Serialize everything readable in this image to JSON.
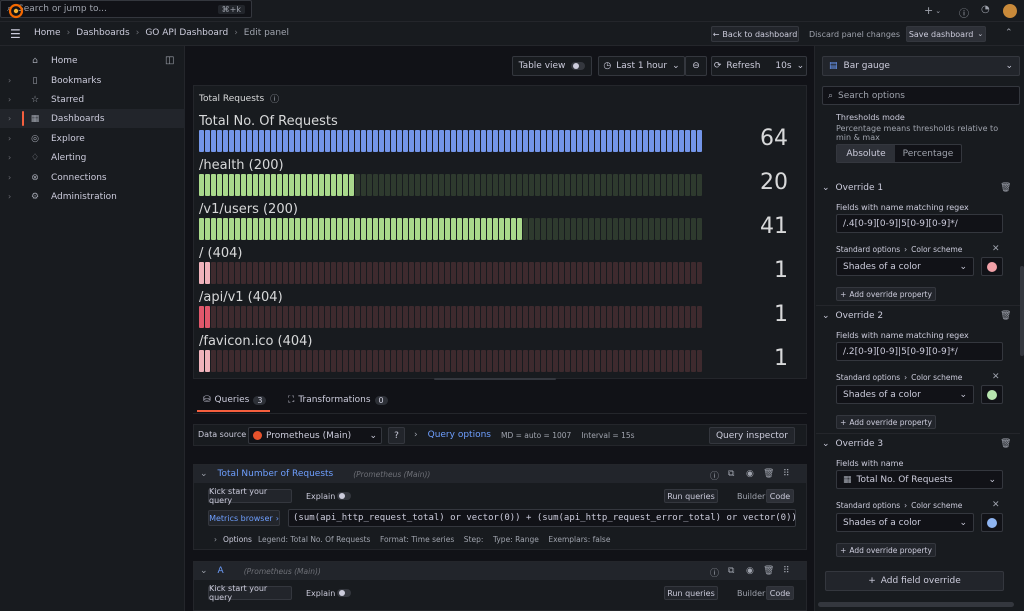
{
  "topbar": {
    "search_placeholder": "Search or jump to...",
    "search_shortcut": "⌘+k",
    "plus_label": "+"
  },
  "breadcrumb": {
    "items": [
      "Home",
      "Dashboards",
      "GO API Dashboard",
      "Edit panel"
    ]
  },
  "actions": {
    "back": "Back to dashboard",
    "discard": "Discard panel changes",
    "save": "Save dashboard"
  },
  "sidebar": {
    "items": [
      {
        "label": "Home"
      },
      {
        "label": "Bookmarks"
      },
      {
        "label": "Starred"
      },
      {
        "label": "Dashboards"
      },
      {
        "label": "Explore"
      },
      {
        "label": "Alerting"
      },
      {
        "label": "Connections"
      },
      {
        "label": "Administration"
      }
    ]
  },
  "toolbar": {
    "table_view": "Table view",
    "time_range": "Last 1 hour",
    "refresh": "Refresh",
    "refresh_interval": "10s"
  },
  "panel": {
    "title": "Total Requests",
    "gauges": [
      {
        "label": "Total No. Of Requests",
        "value": "64",
        "fill": 1.0,
        "color": "#7395e8",
        "empty": "#2a3550"
      },
      {
        "label": "/health (200)",
        "value": "20",
        "fill": 0.31,
        "color": "#a9d98b",
        "empty": "#2e3a2e"
      },
      {
        "label": "/v1/users (200)",
        "value": "41",
        "fill": 0.64,
        "color": "#a9d98b",
        "empty": "#2e3a2e"
      },
      {
        "label": "/ (404)",
        "value": "1",
        "fill": 0.02,
        "color": "#f0b2bb",
        "empty": "#3e2a2e"
      },
      {
        "label": "/api/v1 (404)",
        "value": "1",
        "fill": 0.02,
        "color": "#e0576b",
        "empty": "#3e2a2e"
      },
      {
        "label": "/favicon.ico (404)",
        "value": "1",
        "fill": 0.02,
        "color": "#f0b2bb",
        "empty": "#3e2a2e"
      }
    ]
  },
  "query_tabs": {
    "queries": "Queries",
    "queries_count": "3",
    "transformations": "Transformations",
    "transformations_count": "0"
  },
  "datasource": {
    "label": "Data source",
    "value": "Prometheus (Main)",
    "query_options": "Query options",
    "md": "MD = auto = 1007",
    "interval": "Interval = 15s",
    "inspector": "Query inspector"
  },
  "query1": {
    "name": "Total Number of Requests",
    "source": "(Prometheus (Main))",
    "kick": "Kick start your query",
    "explain": "Explain",
    "run": "Run queries",
    "builder": "Builder",
    "code": "Code",
    "metrics_browser": "Metrics browser",
    "expr": "(sum(api_http_request_total) or vector(0)) + (sum(api_http_request_error_total) or vector(0))",
    "options_label": "Options",
    "options_detail": "Legend: Total No. Of Requests    Format: Time series    Step:    Type: Range    Exemplars: false"
  },
  "query2": {
    "name": "A",
    "source": "(Prometheus (Main))",
    "kick": "Kick start your query",
    "explain": "Explain",
    "run": "Run queries",
    "builder": "Builder",
    "code": "Code"
  },
  "rightpane": {
    "viz": "Bar gauge",
    "search_placeholder": "Search options",
    "thresholds_mode": "Thresholds mode",
    "thresholds_desc": "Percentage means thresholds relative to min & max",
    "absolute": "Absolute",
    "percentage": "Percentage",
    "overrides": [
      {
        "title": "Override 1",
        "matcher": "Fields with name matching regex",
        "matcher_value": "/.4[0-9][0-9]|5[0-9][0-9]*/",
        "prop_path_a": "Standard options",
        "prop_path_b": "Color scheme",
        "prop_value": "Shades of a color",
        "swatch": "#f2a1a8",
        "add_prop": "Add override property"
      },
      {
        "title": "Override 2",
        "matcher": "Fields with name matching regex",
        "matcher_value": "/.2[0-9][0-9]|5[0-9][0-9]*/",
        "prop_path_a": "Standard options",
        "prop_path_b": "Color scheme",
        "prop_value": "Shades of a color",
        "swatch": "#b8e6b0",
        "add_prop": "Add override property"
      },
      {
        "title": "Override 3",
        "matcher": "Fields with name",
        "matcher_value": "Total No. Of Requests",
        "prop_path_a": "Standard options",
        "prop_path_b": "Color scheme",
        "prop_value": "Shades of a color",
        "swatch": "#8fb5f2",
        "add_prop": "Add override property"
      }
    ],
    "add_field_override": "Add field override"
  }
}
